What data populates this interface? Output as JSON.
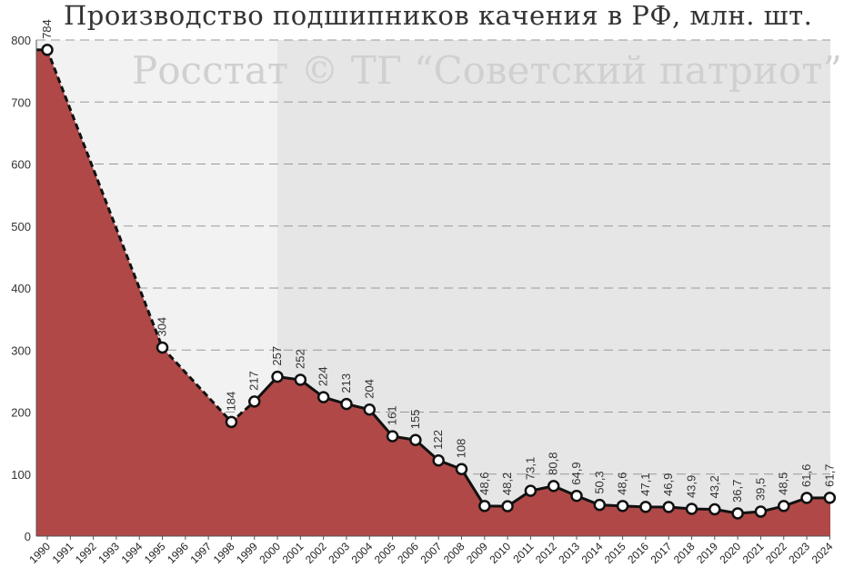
{
  "title": "Производство подшипников качения в РФ, млн. шт.",
  "watermark": "Росстат © ТГ “Советский патриот”",
  "colors": {
    "area_fill": "#b04848",
    "line": "#111111",
    "marker_fill": "#ffffff",
    "bg_left": "#f2f2f2",
    "bg_right": "#e6e6e6",
    "grid": "#999999"
  },
  "chart_data": {
    "type": "area",
    "title": "Производство подшипников качения в РФ, млн. шт.",
    "ylim": [
      0,
      800
    ],
    "yticks": [
      0,
      100,
      200,
      300,
      400,
      500,
      600,
      700,
      800
    ],
    "x_categories": [
      "1990",
      "1991",
      "1992",
      "1993",
      "1994",
      "1995",
      "1996",
      "1997",
      "1998",
      "1999",
      "2000",
      "2001",
      "2002",
      "2003",
      "2004",
      "2005",
      "2006",
      "2007",
      "2008",
      "2009",
      "2010",
      "2011",
      "2012",
      "2013",
      "2014",
      "2015",
      "2016",
      "2017",
      "2018",
      "2019",
      "2020",
      "2021",
      "2022",
      "2023",
      "2024"
    ],
    "series": [
      {
        "points": [
          {
            "x": "1990",
            "y": 784,
            "label": "784"
          },
          {
            "x": "1995",
            "y": 304,
            "label": "304"
          },
          {
            "x": "1998",
            "y": 184,
            "label": "184"
          },
          {
            "x": "1999",
            "y": 217,
            "label": "217"
          },
          {
            "x": "2000",
            "y": 257,
            "label": "257"
          },
          {
            "x": "2001",
            "y": 252,
            "label": "252"
          },
          {
            "x": "2002",
            "y": 224,
            "label": "224"
          },
          {
            "x": "2003",
            "y": 213,
            "label": "213"
          },
          {
            "x": "2004",
            "y": 204,
            "label": "204"
          },
          {
            "x": "2005",
            "y": 161,
            "label": "161"
          },
          {
            "x": "2006",
            "y": 155,
            "label": "155"
          },
          {
            "x": "2007",
            "y": 122,
            "label": "122"
          },
          {
            "x": "2008",
            "y": 108,
            "label": "108"
          },
          {
            "x": "2009",
            "y": 48.6,
            "label": "48,6"
          },
          {
            "x": "2010",
            "y": 48.2,
            "label": "48,2"
          },
          {
            "x": "2011",
            "y": 73.1,
            "label": "73,1"
          },
          {
            "x": "2012",
            "y": 80.8,
            "label": "80,8"
          },
          {
            "x": "2013",
            "y": 64.9,
            "label": "64,9"
          },
          {
            "x": "2014",
            "y": 50.3,
            "label": "50,3"
          },
          {
            "x": "2015",
            "y": 48.6,
            "label": "48,6"
          },
          {
            "x": "2016",
            "y": 47.1,
            "label": "47,1"
          },
          {
            "x": "2017",
            "y": 46.9,
            "label": "46,9"
          },
          {
            "x": "2018",
            "y": 43.9,
            "label": "43,9"
          },
          {
            "x": "2019",
            "y": 43.2,
            "label": "43,2"
          },
          {
            "x": "2020",
            "y": 36.7,
            "label": "36,7"
          },
          {
            "x": "2021",
            "y": 39.5,
            "label": "39,5"
          },
          {
            "x": "2022",
            "y": 48.5,
            "label": "48,5"
          },
          {
            "x": "2023",
            "y": 61.6,
            "label": "61,6"
          },
          {
            "x": "2024",
            "y": 61.7,
            "label": "61,7"
          }
        ]
      }
    ],
    "dashed_segment_until": "1999",
    "shaded_background_from": "2000",
    "grid": true
  }
}
